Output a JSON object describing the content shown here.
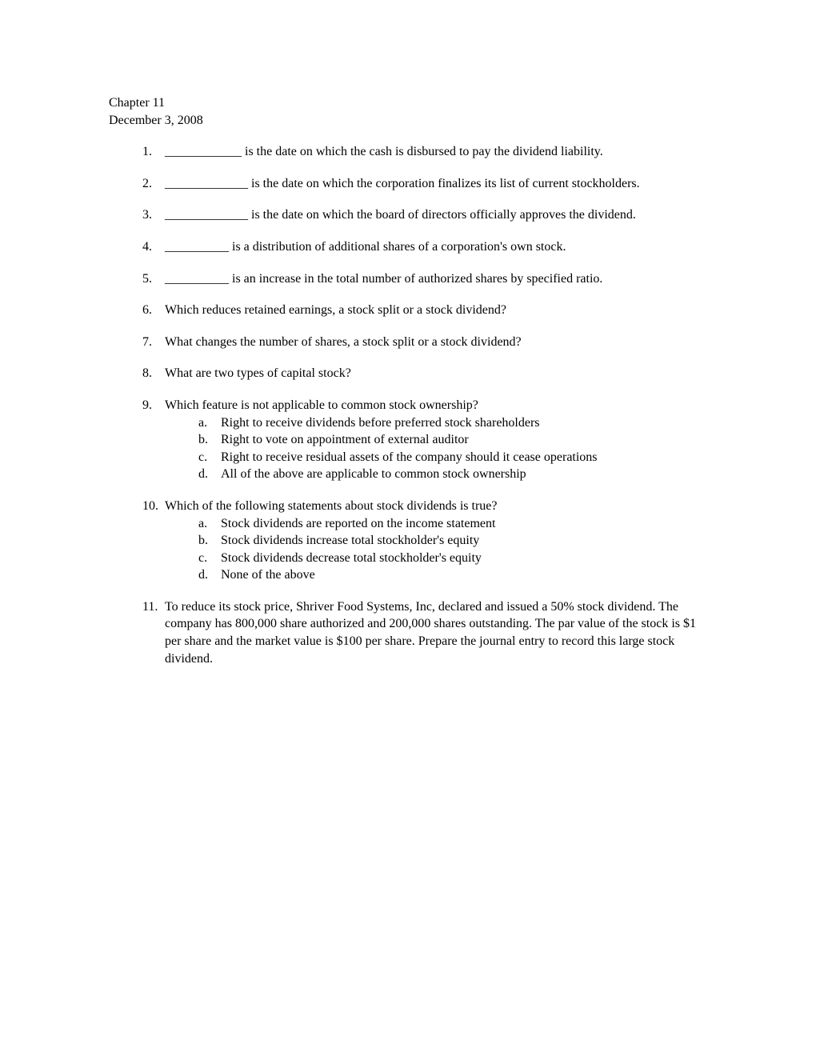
{
  "header": {
    "chapter": "Chapter 11",
    "date": "December 3, 2008"
  },
  "questions": [
    {
      "number": "1.",
      "text": "____________ is the date on which the cash is disbursed to pay the dividend liability."
    },
    {
      "number": "2.",
      "text": "_____________ is the date on which the corporation finalizes its list of current stockholders."
    },
    {
      "number": "3.",
      "text": "_____________ is the date on which the board of directors officially approves the dividend."
    },
    {
      "number": "4.",
      "text": "__________ is a distribution of additional shares of a corporation's own stock."
    },
    {
      "number": "5.",
      "text": "__________ is an increase in the total number of authorized shares by specified ratio."
    },
    {
      "number": "6.",
      "text": "Which reduces retained earnings, a stock split or a stock dividend?"
    },
    {
      "number": "7.",
      "text": "What changes the number of shares, a stock split or a stock dividend?"
    },
    {
      "number": "8.",
      "text": "What are two types of capital stock?"
    },
    {
      "number": "9.",
      "text": "Which feature is not applicable to common stock ownership?",
      "options": [
        {
          "letter": "a.",
          "text": "Right to receive dividends before preferred stock shareholders"
        },
        {
          "letter": "b.",
          "text": "Right to vote on appointment of external auditor"
        },
        {
          "letter": "c.",
          "text": "Right to receive residual assets of the company should it cease operations"
        },
        {
          "letter": "d.",
          "text": "All of the above are applicable to common stock ownership"
        }
      ]
    },
    {
      "number": "10.",
      "text": "Which of the following statements about stock dividends is true?",
      "options": [
        {
          "letter": "a.",
          "text": "Stock dividends are reported on the income statement"
        },
        {
          "letter": "b.",
          "text": "Stock dividends increase total stockholder's equity"
        },
        {
          "letter": "c.",
          "text": "Stock dividends decrease total stockholder's equity"
        },
        {
          "letter": "d.",
          "text": "None of the above"
        }
      ]
    },
    {
      "number": "11.",
      "text": "To reduce its stock price, Shriver Food Systems, Inc, declared and issued a 50% stock dividend. The company has 800,000 share authorized and 200,000 shares outstanding. The par value of the stock is $1 per share and the market value is $100 per share. Prepare the journal entry to record this large stock dividend."
    }
  ]
}
